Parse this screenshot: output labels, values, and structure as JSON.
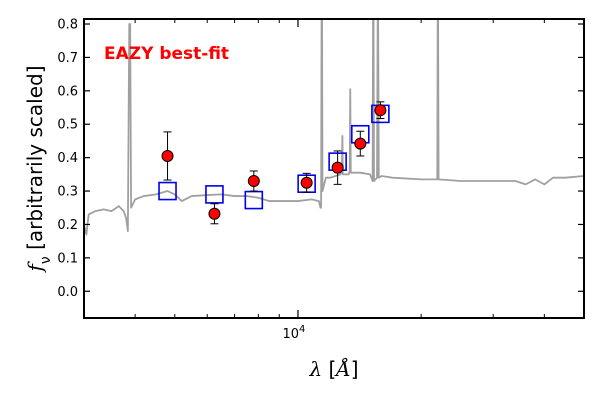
{
  "chart_data": {
    "type": "scatter",
    "annotation": {
      "text": "EAZY best-fit",
      "color": "#ff0000"
    },
    "xlabel": "λ [Å]",
    "ylabel": "f_ν [arbitrarily scaled]",
    "ylabel_symbol": "f",
    "ylabel_subscript": "ν",
    "ylabel_text": " [arbitrarily scaled]",
    "xlabel_symbol": "λ",
    "xlabel_text": " [",
    "xlabel_unit": "Å",
    "xlabel_close": "]",
    "xscale": "log",
    "xlim": [
      3000,
      50000
    ],
    "ylim": [
      -0.08,
      0.815
    ],
    "yticks": [
      0.0,
      0.1,
      0.2,
      0.3,
      0.4,
      0.5,
      0.6,
      0.7,
      0.8
    ],
    "ytick_labels": [
      "0.0",
      "0.1",
      "0.2",
      "0.3",
      "0.4",
      "0.5",
      "0.6",
      "0.7",
      "0.8"
    ],
    "xtick_major": {
      "value": 10000,
      "base": "10",
      "exp": "4"
    },
    "xtick_minor": [
      4000,
      5000,
      6000,
      7000,
      8000,
      9000,
      20000,
      30000,
      40000
    ],
    "grid": false,
    "colors": {
      "observed": "#ff0000",
      "model_box": "#0000ee",
      "sed": "#a0a0a0"
    },
    "series": [
      {
        "role": "observed_photometry",
        "marker": "circle",
        "points": [
          {
            "x": 4800,
            "y": 0.405,
            "yerr": 0.072
          },
          {
            "x": 6250,
            "y": 0.232,
            "yerr": 0.03
          },
          {
            "x": 7800,
            "y": 0.33,
            "yerr": 0.03
          },
          {
            "x": 10500,
            "y": 0.325,
            "yerr": 0.028
          },
          {
            "x": 12500,
            "y": 0.37,
            "yerr": 0.05
          },
          {
            "x": 14200,
            "y": 0.442,
            "yerr": 0.037
          },
          {
            "x": 15900,
            "y": 0.542,
            "yerr": 0.025
          }
        ]
      },
      {
        "role": "model_photometry",
        "marker": "square",
        "points": [
          {
            "x": 4800,
            "y": 0.3
          },
          {
            "x": 6250,
            "y": 0.29
          },
          {
            "x": 7800,
            "y": 0.273
          },
          {
            "x": 10500,
            "y": 0.322
          },
          {
            "x": 12500,
            "y": 0.388
          },
          {
            "x": 14200,
            "y": 0.47
          },
          {
            "x": 15900,
            "y": 0.531
          }
        ]
      },
      {
        "role": "best_fit_sed",
        "marker": "line",
        "points": [
          {
            "x": 3000,
            "y": 0.2
          },
          {
            "x": 3040,
            "y": 0.17
          },
          {
            "x": 3080,
            "y": 0.23
          },
          {
            "x": 3200,
            "y": 0.24
          },
          {
            "x": 3350,
            "y": 0.245
          },
          {
            "x": 3500,
            "y": 0.24
          },
          {
            "x": 3650,
            "y": 0.255
          },
          {
            "x": 3750,
            "y": 0.24
          },
          {
            "x": 3800,
            "y": 0.22
          },
          {
            "x": 3840,
            "y": 0.18
          },
          {
            "x": 3870,
            "y": 0.8
          },
          {
            "x": 3890,
            "y": 0.8
          },
          {
            "x": 3910,
            "y": 0.25
          },
          {
            "x": 4000,
            "y": 0.275
          },
          {
            "x": 4200,
            "y": 0.285
          },
          {
            "x": 4500,
            "y": 0.29
          },
          {
            "x": 4800,
            "y": 0.3
          },
          {
            "x": 5000,
            "y": 0.29
          },
          {
            "x": 5200,
            "y": 0.27
          },
          {
            "x": 5500,
            "y": 0.285
          },
          {
            "x": 6000,
            "y": 0.288
          },
          {
            "x": 6500,
            "y": 0.29
          },
          {
            "x": 7000,
            "y": 0.285
          },
          {
            "x": 7500,
            "y": 0.285
          },
          {
            "x": 8000,
            "y": 0.28
          },
          {
            "x": 8500,
            "y": 0.27
          },
          {
            "x": 9000,
            "y": 0.27
          },
          {
            "x": 9500,
            "y": 0.27
          },
          {
            "x": 10000,
            "y": 0.27
          },
          {
            "x": 10800,
            "y": 0.275
          },
          {
            "x": 11250,
            "y": 0.27
          },
          {
            "x": 11350,
            "y": 0.25
          },
          {
            "x": 11390,
            "y": 0.25
          },
          {
            "x": 11420,
            "y": 0.815
          },
          {
            "x": 11450,
            "y": 0.815
          },
          {
            "x": 11480,
            "y": 0.3
          },
          {
            "x": 11700,
            "y": 0.34
          },
          {
            "x": 12000,
            "y": 0.34
          },
          {
            "x": 12700,
            "y": 0.35
          },
          {
            "x": 12800,
            "y": 0.36
          },
          {
            "x": 12840,
            "y": 0.465
          },
          {
            "x": 12870,
            "y": 0.35
          },
          {
            "x": 13300,
            "y": 0.35
          },
          {
            "x": 13380,
            "y": 0.36
          },
          {
            "x": 13420,
            "y": 0.605
          },
          {
            "x": 13460,
            "y": 0.355
          },
          {
            "x": 14200,
            "y": 0.355
          },
          {
            "x": 15000,
            "y": 0.35
          },
          {
            "x": 15220,
            "y": 0.33
          },
          {
            "x": 15260,
            "y": 0.815
          },
          {
            "x": 15300,
            "y": 0.815
          },
          {
            "x": 15340,
            "y": 0.33
          },
          {
            "x": 15600,
            "y": 0.34
          },
          {
            "x": 15660,
            "y": 0.815
          },
          {
            "x": 15700,
            "y": 0.815
          },
          {
            "x": 15760,
            "y": 0.34
          },
          {
            "x": 16000,
            "y": 0.345
          },
          {
            "x": 17000,
            "y": 0.34
          },
          {
            "x": 20000,
            "y": 0.335
          },
          {
            "x": 21900,
            "y": 0.335
          },
          {
            "x": 21950,
            "y": 0.815
          },
          {
            "x": 22000,
            "y": 0.815
          },
          {
            "x": 22060,
            "y": 0.335
          },
          {
            "x": 25000,
            "y": 0.33
          },
          {
            "x": 30000,
            "y": 0.33
          },
          {
            "x": 34000,
            "y": 0.33
          },
          {
            "x": 36000,
            "y": 0.32
          },
          {
            "x": 38000,
            "y": 0.335
          },
          {
            "x": 40000,
            "y": 0.32
          },
          {
            "x": 42000,
            "y": 0.34
          },
          {
            "x": 45000,
            "y": 0.34
          },
          {
            "x": 50000,
            "y": 0.345
          }
        ]
      }
    ]
  }
}
